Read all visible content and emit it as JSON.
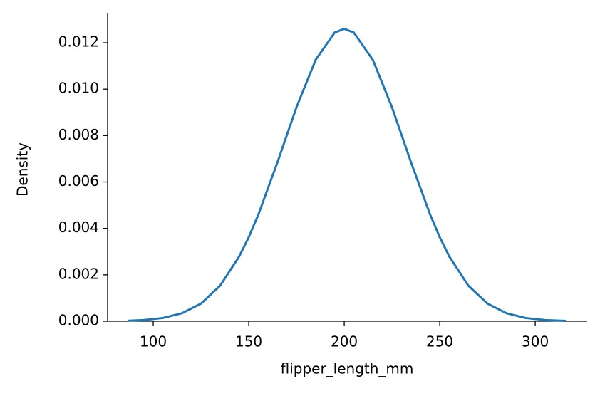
{
  "chart_data": {
    "type": "line",
    "xlabel": "flipper_length_mm",
    "ylabel": "Density",
    "x": [
      87,
      95,
      105,
      115,
      125,
      135,
      145,
      150,
      155,
      165,
      175,
      185,
      195,
      200,
      205,
      215,
      225,
      235,
      245,
      250,
      255,
      265,
      275,
      285,
      295,
      305,
      316
    ],
    "series": [
      {
        "color": "#1f77b4",
        "values": [
          2.15e-05,
          5.15e-05,
          0.00014,
          0.000343,
          0.00076,
          0.00153,
          0.00279,
          0.00362,
          0.00459,
          0.00684,
          0.00922,
          0.01126,
          0.01244,
          0.0126,
          0.01244,
          0.01126,
          0.00922,
          0.00684,
          0.00459,
          0.00362,
          0.00279,
          0.00153,
          0.00076,
          0.000343,
          0.00014,
          5.15e-05,
          1.54e-05
        ]
      }
    ],
    "xlim": [
      76.1,
      327.2
    ],
    "ylim": [
      0,
      0.01329
    ],
    "xticks": [
      100,
      150,
      200,
      250,
      300
    ],
    "yticks": [
      {
        "value": 0,
        "label": "0.000"
      },
      {
        "value": 0.002,
        "label": "0.002"
      },
      {
        "value": 0.004,
        "label": "0.004"
      },
      {
        "value": 0.006,
        "label": "0.006"
      },
      {
        "value": 0.008,
        "label": "0.008"
      },
      {
        "value": 0.01,
        "label": "0.010"
      },
      {
        "value": 0.012,
        "label": "0.012"
      }
    ]
  }
}
